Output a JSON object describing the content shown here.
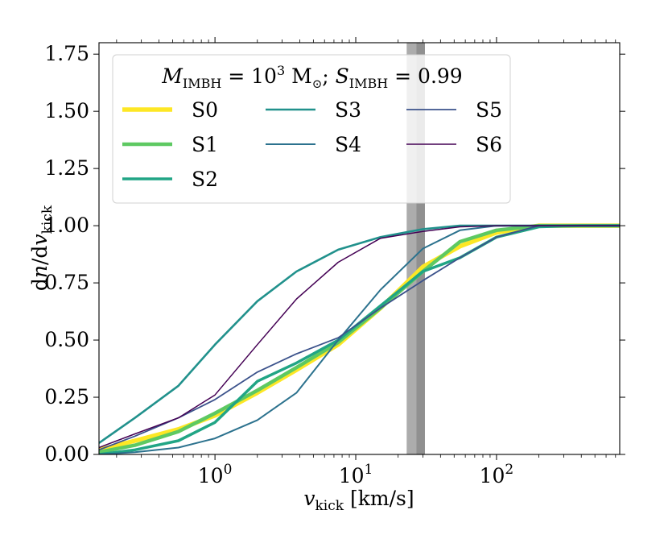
{
  "chart_data": {
    "type": "line",
    "xscale": "log",
    "xlim": [
      0.15,
      750
    ],
    "ylim": [
      0.0,
      1.8
    ],
    "xticks": [
      {
        "value": 1,
        "base": "10",
        "exp": "0"
      },
      {
        "value": 10,
        "base": "10",
        "exp": "1"
      },
      {
        "value": 100,
        "base": "10",
        "exp": "2"
      }
    ],
    "yticks": [
      {
        "value": 0.0,
        "label": "0.00"
      },
      {
        "value": 0.25,
        "label": "0.25"
      },
      {
        "value": 0.5,
        "label": "0.50"
      },
      {
        "value": 0.75,
        "label": "0.75"
      },
      {
        "value": 1.0,
        "label": "1.00"
      },
      {
        "value": 1.25,
        "label": "1.25"
      },
      {
        "value": 1.5,
        "label": "1.50"
      },
      {
        "value": 1.75,
        "label": "1.75"
      }
    ],
    "xlabel": {
      "var": "v",
      "sub": "kick",
      "unit": " [km/s]"
    },
    "ylabel": {
      "pre": "d",
      "var": "n",
      "mid": "/d",
      "var2": "v",
      "sub": "kick"
    },
    "legend_title": {
      "m": "M",
      "msub": "IMBH",
      "eq1": " = 10",
      "exp": "3",
      "unit": " M",
      "sun": "⊙",
      "sep": "; ",
      "s": "S",
      "ssub": "IMBH",
      "eq2": " = 0.99"
    },
    "band": {
      "x0": 23,
      "x1": 31,
      "inner_x0": 27,
      "inner_x1": 31
    },
    "x": [
      0.15,
      0.27,
      0.55,
      1.0,
      2.0,
      3.8,
      7.5,
      15,
      30,
      55,
      100,
      200,
      400,
      750
    ],
    "series": [
      {
        "name": "S0",
        "color": "#fde725",
        "width": 5.5,
        "values": [
          0.02,
          0.06,
          0.11,
          0.17,
          0.27,
          0.37,
          0.48,
          0.64,
          0.82,
          0.91,
          0.97,
          1.0,
          1.0,
          1.0
        ]
      },
      {
        "name": "S1",
        "color": "#5ec962",
        "width": 4.5,
        "values": [
          0.01,
          0.04,
          0.1,
          0.18,
          0.28,
          0.38,
          0.49,
          0.64,
          0.8,
          0.93,
          0.98,
          1.0,
          1.0,
          1.0
        ]
      },
      {
        "name": "S2",
        "color": "#21a585",
        "width": 3.5,
        "values": [
          0.0,
          0.02,
          0.06,
          0.14,
          0.32,
          0.4,
          0.5,
          0.65,
          0.8,
          0.86,
          0.95,
          0.995,
          1.0,
          1.0
        ]
      },
      {
        "name": "S3",
        "color": "#21918c",
        "width": 2.6,
        "values": [
          0.05,
          0.16,
          0.3,
          0.48,
          0.67,
          0.8,
          0.895,
          0.95,
          0.985,
          1.0,
          1.0,
          1.0,
          1.0,
          1.0
        ]
      },
      {
        "name": "S4",
        "color": "#2c728e",
        "width": 2.0,
        "values": [
          0.0,
          0.01,
          0.03,
          0.07,
          0.15,
          0.27,
          0.5,
          0.72,
          0.9,
          0.98,
          1.0,
          1.0,
          1.0,
          1.0
        ]
      },
      {
        "name": "S5",
        "color": "#3b528b",
        "width": 1.8,
        "values": [
          0.02,
          0.08,
          0.16,
          0.24,
          0.36,
          0.44,
          0.51,
          0.64,
          0.76,
          0.86,
          0.95,
          1.0,
          1.0,
          1.0
        ]
      },
      {
        "name": "S6",
        "color": "#440154",
        "width": 1.5,
        "values": [
          0.03,
          0.09,
          0.16,
          0.26,
          0.48,
          0.68,
          0.84,
          0.945,
          0.975,
          0.995,
          1.0,
          1.0,
          1.0,
          1.0
        ]
      }
    ]
  }
}
